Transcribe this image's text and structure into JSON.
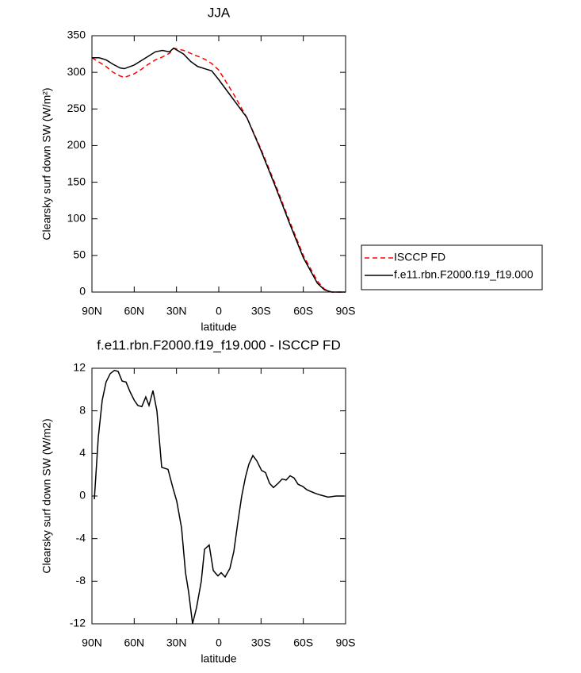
{
  "chart_data": [
    {
      "type": "line",
      "title": "JJA",
      "xlabel": "latitude",
      "ylabel": "Clearsky surf down SW (W/m²)",
      "x": [
        90,
        85,
        80,
        75,
        70,
        67,
        60,
        55,
        50,
        45,
        40,
        35,
        32,
        25,
        20,
        15,
        10,
        5,
        0,
        -10,
        -20,
        -30,
        -40,
        -50,
        -60,
        -70,
        -75,
        -80,
        -90
      ],
      "series": [
        {
          "name": "ISCCP FD",
          "color": "#ff0000",
          "dashed": true,
          "values": [
            320,
            314,
            308,
            300,
            295,
            293,
            298,
            304,
            311,
            317,
            321,
            326,
            333,
            330,
            326,
            322,
            318,
            312,
            303,
            272,
            238,
            195,
            148,
            98,
            50,
            15,
            4,
            0,
            0
          ]
        },
        {
          "name": "f.e11.rbn.F2000.f19_f19.000",
          "color": "#000000",
          "dashed": false,
          "values": [
            320,
            320,
            317,
            311,
            306,
            305,
            310,
            316,
            322,
            328,
            330,
            328,
            333,
            325,
            315,
            308,
            305,
            302,
            290,
            264,
            238,
            193,
            145,
            95,
            47,
            12,
            3,
            0,
            0
          ]
        }
      ],
      "xlim": [
        90,
        -90
      ],
      "ylim": [
        0,
        350
      ],
      "xticks": [
        {
          "value": 90,
          "label": "90N"
        },
        {
          "value": 60,
          "label": "60N"
        },
        {
          "value": 30,
          "label": "30N"
        },
        0,
        {
          "value": -30,
          "label": "30S"
        },
        {
          "value": -60,
          "label": "60S"
        },
        {
          "value": -90,
          "label": "90S"
        }
      ],
      "yticks": [
        0,
        50,
        100,
        150,
        200,
        250,
        300,
        350
      ],
      "legend": "outside-right"
    },
    {
      "type": "line",
      "title": "f.e11.rbn.F2000.f19_f19.000 - ISCCP FD",
      "xlabel": "latitude",
      "ylabel": "Clearsky surf down SW (W/m2)",
      "x": [
        88.3,
        85.5,
        82.7,
        80,
        77,
        74,
        71.4,
        68.6,
        65.8,
        63,
        60,
        57.4,
        54.6,
        51.8,
        49.5,
        46.7,
        43.9,
        40.5,
        36,
        32.6,
        29.8,
        26.4,
        23.6,
        21.4,
        18.6,
        15.8,
        12.4,
        10.1,
        6.8,
        3.9,
        0.6,
        -1.7,
        -4.5,
        -7.9,
        -10.7,
        -13.5,
        -16.3,
        -19,
        -21.4,
        -24.2,
        -27,
        -30.4,
        -33.2,
        -36,
        -38.8,
        -42.2,
        -45,
        -47.8,
        -50.6,
        -53.4,
        -56.3,
        -59.6,
        -62.4,
        -65.8,
        -68.6,
        -72,
        -77.6,
        -83.3,
        -88.9
      ],
      "series": [
        {
          "color": "#000000",
          "dashed": false,
          "values": [
            -0.3,
            5.5,
            9,
            10.7,
            11.5,
            11.8,
            11.7,
            10.8,
            10.7,
            9.8,
            9,
            8.5,
            8.4,
            9.3,
            8.5,
            9.9,
            8,
            2.7,
            2.5,
            0.8,
            -0.5,
            -3,
            -7.2,
            -9,
            -12,
            -10.5,
            -8,
            -5,
            -4.6,
            -7,
            -7.5,
            -7.2,
            -7.6,
            -6.8,
            -5.2,
            -2.5,
            0,
            1.8,
            3,
            3.8,
            3.3,
            2.4,
            2.2,
            1.2,
            0.8,
            1.2,
            1.6,
            1.5,
            1.9,
            1.7,
            1.1,
            0.9,
            0.6,
            0.4,
            0.25,
            0.1,
            -0.1,
            0,
            0
          ]
        }
      ],
      "xlim": [
        90,
        -90
      ],
      "ylim": [
        -12,
        12
      ],
      "xticks": [
        {
          "value": 90,
          "label": "90N"
        },
        {
          "value": 60,
          "label": "60N"
        },
        {
          "value": 30,
          "label": "30N"
        },
        0,
        {
          "value": -30,
          "label": "30S"
        },
        {
          "value": -60,
          "label": "60S"
        },
        {
          "value": -90,
          "label": "90S"
        }
      ],
      "yticks": [
        -12,
        -8,
        -4,
        0,
        4,
        8,
        12
      ]
    }
  ]
}
